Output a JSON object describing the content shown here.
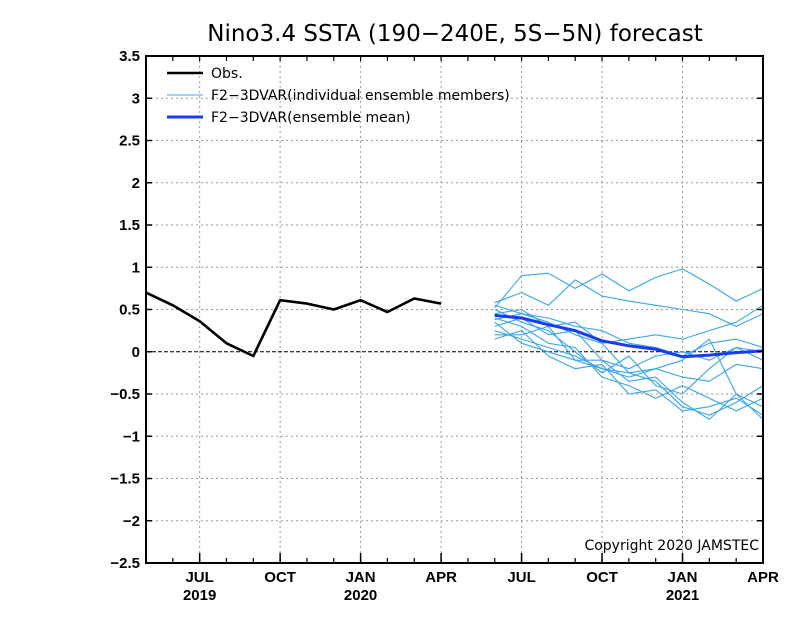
{
  "chart_data": {
    "type": "line",
    "title": "Nino3.4 SSTA (190−240E, 5S−5N) forecast",
    "copyright": "Copyright 2020 JAMSTEC",
    "ylim": [
      -2.5,
      3.5
    ],
    "xlim": [
      0,
      23
    ],
    "y_ticks": [
      {
        "value": 3.5,
        "label": "3.5"
      },
      {
        "value": 3,
        "label": "3"
      },
      {
        "value": 2.5,
        "label": "2.5"
      },
      {
        "value": 2,
        "label": "2"
      },
      {
        "value": 1.5,
        "label": "1.5"
      },
      {
        "value": 1,
        "label": "1"
      },
      {
        "value": 0.5,
        "label": "0.5"
      },
      {
        "value": 0,
        "label": "0"
      },
      {
        "value": -0.5,
        "label": "−0.5"
      },
      {
        "value": -1,
        "label": "−1"
      },
      {
        "value": -1.5,
        "label": "−1.5"
      },
      {
        "value": -2,
        "label": "−2"
      },
      {
        "value": -2.5,
        "label": "−2.5"
      }
    ],
    "x_ticks": [
      {
        "value": 2,
        "label": "JUL",
        "year": "2019"
      },
      {
        "value": 5,
        "label": "OCT",
        "year": ""
      },
      {
        "value": 8,
        "label": "JAN",
        "year": "2020"
      },
      {
        "value": 11,
        "label": "APR",
        "year": ""
      },
      {
        "value": 14,
        "label": "JUL",
        "year": ""
      },
      {
        "value": 17,
        "label": "OCT",
        "year": ""
      },
      {
        "value": 20,
        "label": "JAN",
        "year": "2021"
      },
      {
        "value": 23,
        "label": "APR",
        "year": ""
      }
    ],
    "x_gridlines": [
      2,
      5,
      8,
      11,
      14,
      17,
      20
    ],
    "grid": true,
    "zero_line": true,
    "legend": {
      "position": "top-left",
      "items": [
        {
          "label": "Obs.",
          "color": "#000000",
          "style": "obs"
        },
        {
          "label": "F2−3DVAR(individual ensemble members)",
          "color": "#3aa6ea",
          "style": "member"
        },
        {
          "label": "F2−3DVAR(ensemble mean)",
          "color": "#1a3cf0",
          "style": "mean"
        }
      ]
    },
    "obs": {
      "name": "Obs.",
      "color": "#000000",
      "x": [
        0,
        1,
        2,
        3,
        4,
        5,
        6,
        7,
        8,
        9,
        10,
        11
      ],
      "values": [
        0.7,
        0.55,
        0.36,
        0.1,
        -0.05,
        0.61,
        0.57,
        0.5,
        0.61,
        0.47,
        0.63,
        0.57
      ]
    },
    "members": {
      "color": "#3aa6ea",
      "x": [
        13,
        14,
        15,
        16,
        17,
        18,
        19,
        20,
        21,
        22,
        23
      ],
      "series": [
        [
          0.52,
          0.9,
          0.93,
          0.75,
          0.92,
          0.72,
          0.88,
          0.98,
          0.8,
          0.6,
          0.75
        ],
        [
          0.58,
          0.7,
          0.55,
          0.85,
          0.66,
          0.6,
          0.55,
          0.5,
          0.45,
          0.3,
          0.45
        ],
        [
          0.45,
          0.5,
          0.3,
          0.35,
          0.1,
          0.15,
          0.2,
          0.15,
          0.25,
          0.35,
          0.55
        ],
        [
          0.38,
          0.45,
          0.4,
          0.3,
          0.25,
          0.1,
          0.05,
          -0.05,
          0.1,
          0.15,
          0.05
        ],
        [
          0.3,
          0.4,
          0.2,
          0.25,
          -0.1,
          -0.2,
          -0.05,
          0.0,
          -0.1,
          0.05,
          -0.1
        ],
        [
          0.25,
          0.15,
          0.05,
          -0.05,
          -0.2,
          -0.25,
          -0.2,
          -0.3,
          -0.35,
          -0.15,
          -0.2
        ],
        [
          0.5,
          0.35,
          0.25,
          0.0,
          -0.25,
          -0.05,
          -0.4,
          -0.5,
          -0.2,
          0.05,
          0.0
        ],
        [
          0.2,
          0.2,
          0.3,
          -0.1,
          -0.1,
          -0.35,
          -0.3,
          -0.6,
          -0.8,
          -0.5,
          -0.65
        ],
        [
          0.15,
          0.25,
          -0.05,
          -0.2,
          -0.15,
          -0.5,
          -0.45,
          -0.7,
          -0.65,
          -0.55,
          -0.75
        ],
        [
          0.4,
          0.3,
          0.1,
          0.05,
          -0.3,
          -0.4,
          -0.55,
          -0.4,
          -0.55,
          -0.7,
          -0.55
        ],
        [
          0.35,
          0.1,
          0.0,
          -0.1,
          -0.2,
          -0.3,
          -0.2,
          -0.1,
          0.15,
          -0.5,
          -0.8
        ],
        [
          0.55,
          0.45,
          0.35,
          0.2,
          0.1,
          -0.25,
          -0.35,
          -0.65,
          -0.75,
          -0.6,
          -0.4
        ]
      ]
    },
    "ensemble_mean": {
      "name": "F2−3DVAR(ensemble mean)",
      "color": "#1a3cf0",
      "x": [
        13,
        14,
        15,
        16,
        17,
        18,
        19,
        20,
        21,
        22,
        23
      ],
      "values": [
        0.43,
        0.4,
        0.32,
        0.25,
        0.13,
        0.07,
        0.03,
        -0.06,
        -0.04,
        -0.01,
        0.01
      ]
    }
  }
}
